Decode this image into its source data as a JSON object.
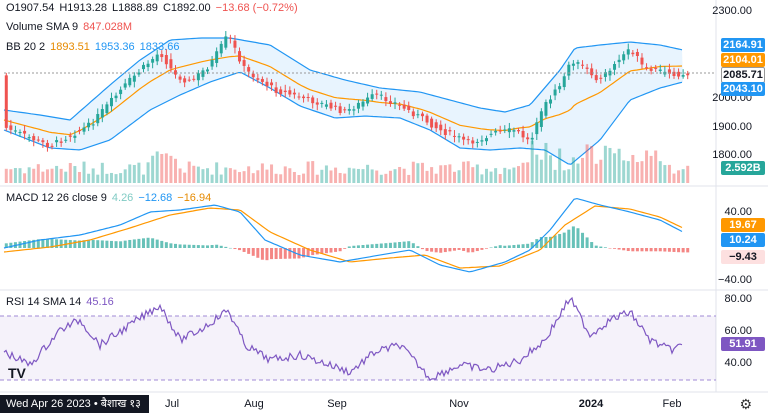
{
  "legend": {
    "ohlc": {
      "o": "O1907.54",
      "h": "H1913.28",
      "l": "L1888.89",
      "c": "C1892.00",
      "chg": "−13.68 (−0.72%)"
    },
    "volume": {
      "label": "Volume SMA 9",
      "value": "847.028M"
    },
    "bb": {
      "label": "BB 20 2",
      "basis": "1893.51",
      "upper": "1953.36",
      "lower": "1833.66"
    },
    "macd": {
      "label": "MACD 12 26 close 9",
      "hist": "4.26",
      "macd": "−12.68",
      "signal": "−16.94"
    },
    "rsi": {
      "label": "RSI 14 SMA 14",
      "value": "45.16"
    }
  },
  "price_axis": [
    "2300.00",
    "2000.00",
    "1900.00",
    "1800.00"
  ],
  "price_tags": {
    "upper": "2164.91",
    "basis": "2104.01",
    "last": "2085.71",
    "lower": "2043.10",
    "volume": "2.592B"
  },
  "macd_axis": [
    "40.00",
    "−40.00"
  ],
  "macd_tags": {
    "signal": "19.67",
    "macd": "10.24",
    "hist": "−9.43"
  },
  "rsi_axis": [
    "80.00",
    "60.00",
    "40.00"
  ],
  "rsi_tag": "51.91",
  "time_axis": [
    "Jul",
    "Aug",
    "Sep",
    "Nov",
    "2024",
    "Feb"
  ],
  "date_label": "Wed Apr 26 2023 • बैशाख १३",
  "logo": "TV",
  "colors": {
    "up": "#26a69a",
    "down": "#ef5350",
    "bb": "#2196f3",
    "basis": "#ff9800",
    "rsi": "#7e57c2"
  }
}
